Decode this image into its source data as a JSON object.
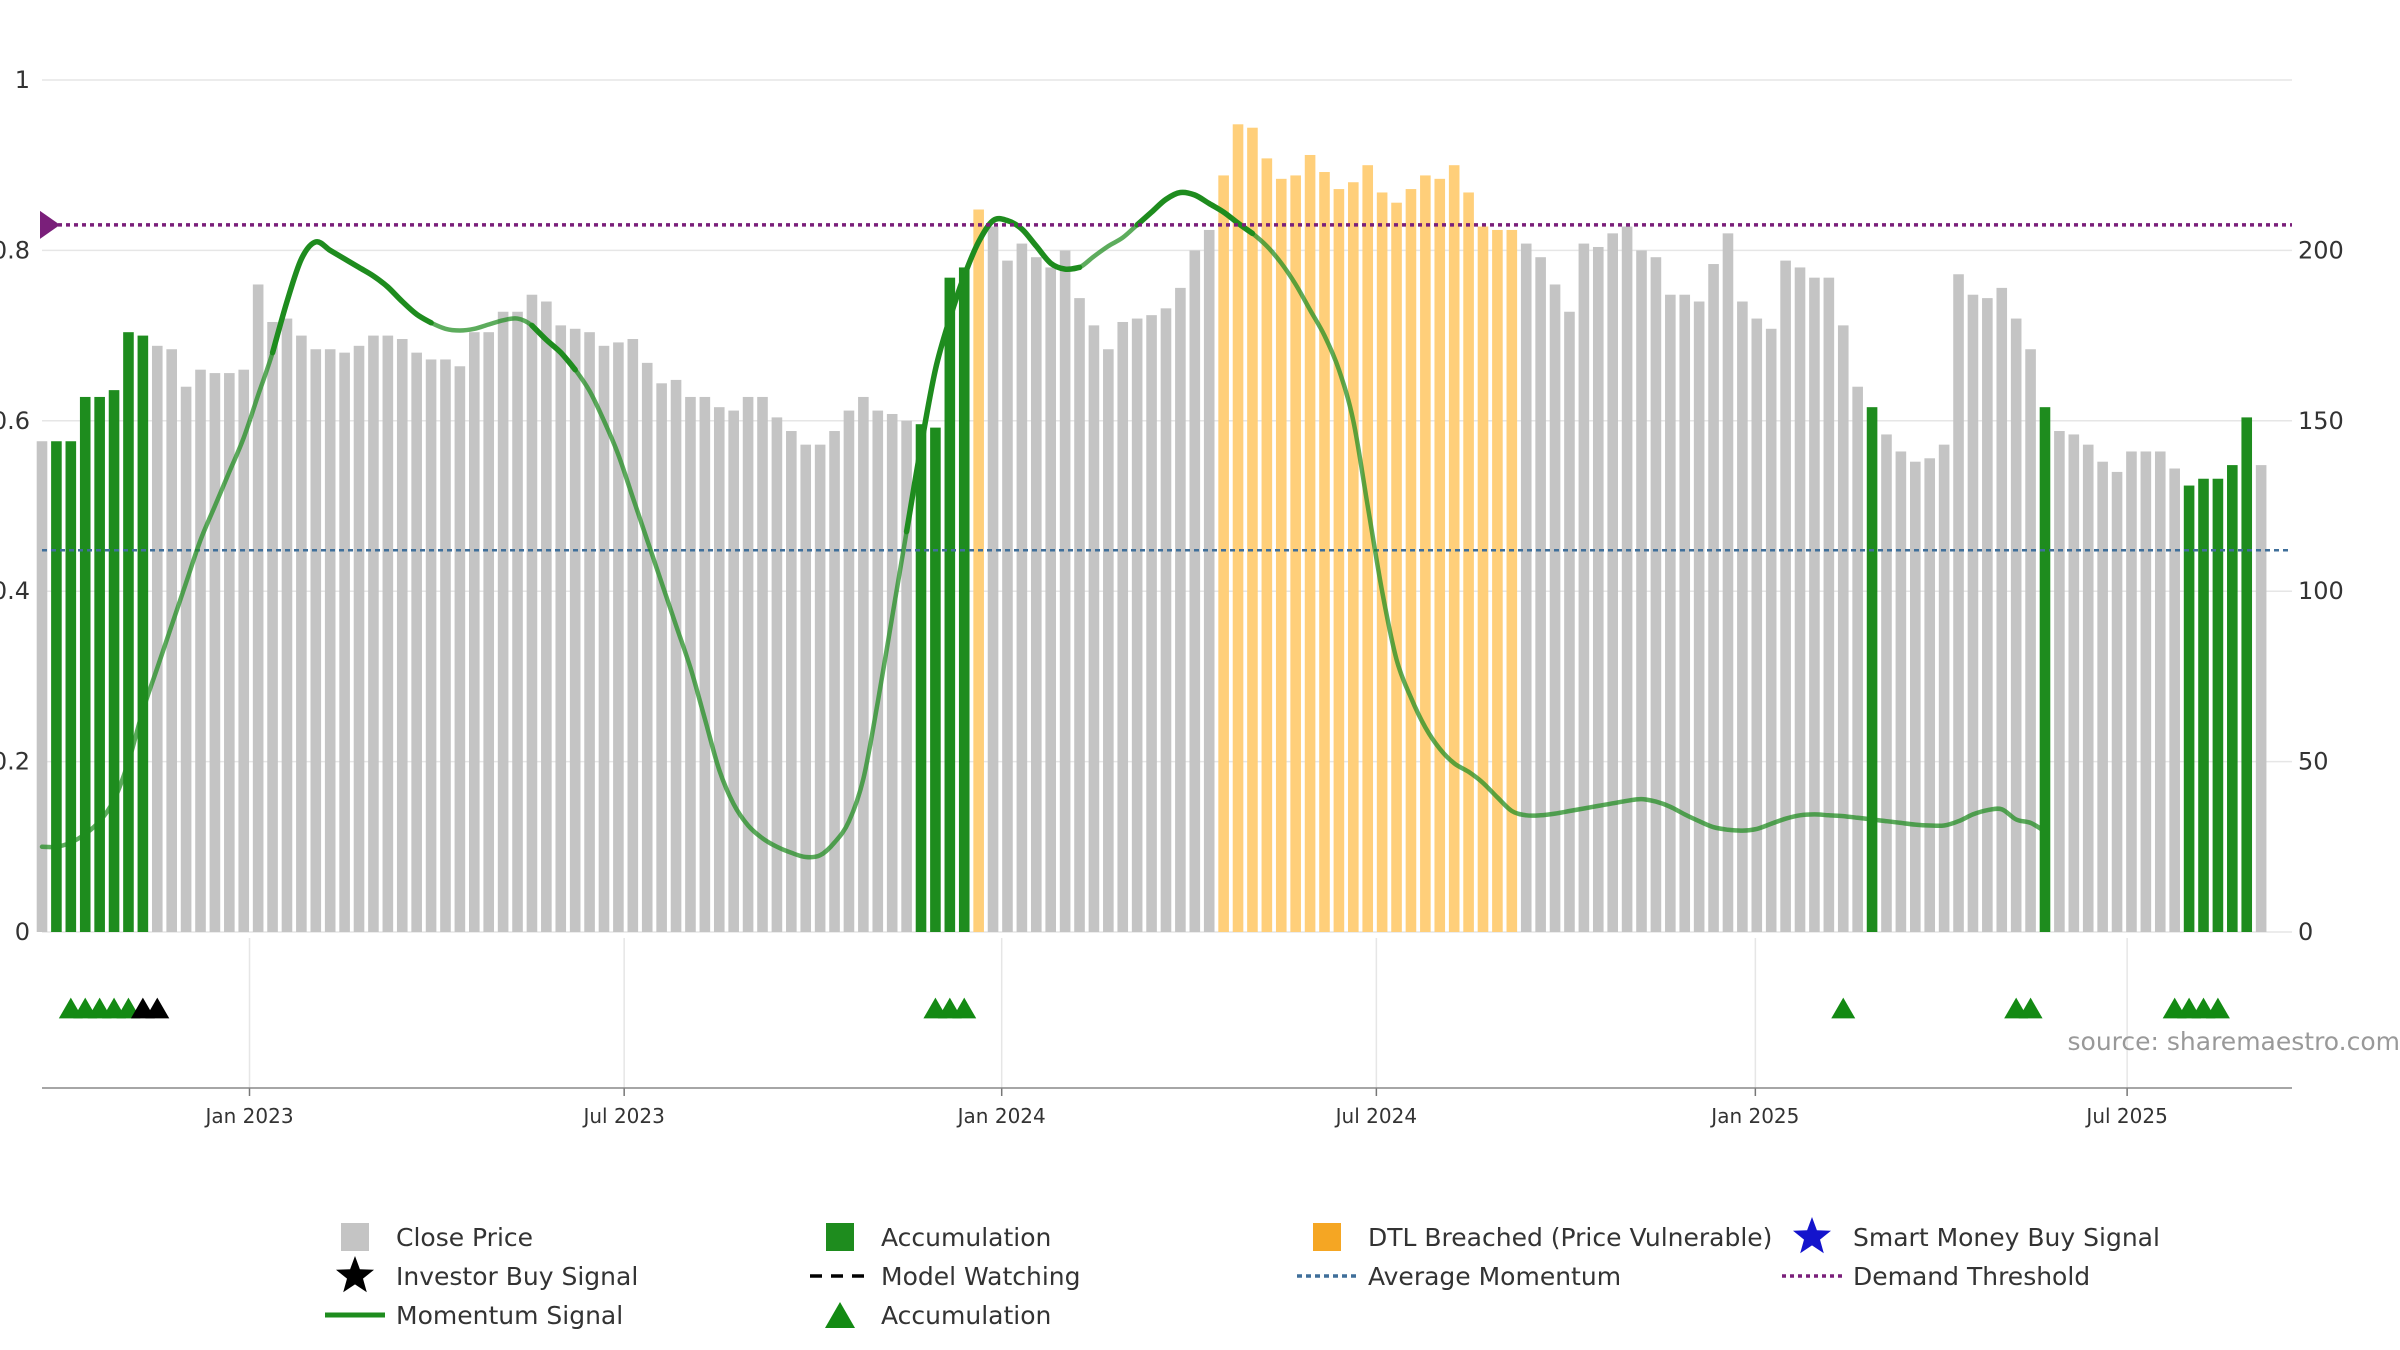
{
  "chart_data": {
    "type": "bar",
    "source": "source: sharemaestro.com",
    "left_axis": {
      "range": [
        0,
        1
      ],
      "ticks": [
        {
          "v": 0,
          "label": "0"
        },
        {
          "v": 0.2,
          "label": "0.2"
        },
        {
          "v": 0.4,
          "label": "0.4"
        },
        {
          "v": 0.6,
          "label": "0.6"
        },
        {
          "v": 0.8,
          "label": "0.8"
        },
        {
          "v": 1,
          "label": "1"
        }
      ]
    },
    "right_axis": {
      "range": [
        0,
        250
      ],
      "ticks": [
        {
          "v": 0,
          "label": "0"
        },
        {
          "v": 50,
          "label": "50"
        },
        {
          "v": 100,
          "label": "100"
        },
        {
          "v": 150,
          "label": "150"
        },
        {
          "v": 200,
          "label": "200"
        }
      ]
    },
    "x_ticks": [
      {
        "week": 14.4,
        "label": "Jan 2023"
      },
      {
        "week": 40.4,
        "label": "Jul 2023"
      },
      {
        "week": 66.6,
        "label": "Jan 2024"
      },
      {
        "week": 92.6,
        "label": "Jul 2024"
      },
      {
        "week": 118.9,
        "label": "Jan 2025"
      },
      {
        "week": 144.7,
        "label": "Jul 2025"
      }
    ],
    "demand_threshold": 0.83,
    "average_momentum": 0.448,
    "colors": {
      "close": "#c4c4c4",
      "accumulation": "#1e8c1e",
      "dtl": "#ffcf7a",
      "momentum": "#1e8c1e",
      "threshold": "#7a1f7a",
      "average": "#3f6f9a",
      "triangle": "#138a13",
      "investor_star": "#000000",
      "smart_money_star": "#1414cc",
      "grid": "#e6e6e6"
    },
    "series": [
      {
        "name": "Close Price",
        "values": [
          144,
          144,
          144,
          157,
          157,
          159,
          176,
          175,
          172,
          171,
          160,
          165,
          164,
          164,
          165,
          190,
          179,
          180,
          175,
          171,
          171,
          170,
          172,
          175,
          175,
          174,
          170,
          168,
          168,
          166,
          176,
          176,
          182,
          182,
          187,
          185,
          178,
          177,
          176,
          172,
          173,
          174,
          167,
          161,
          162,
          157,
          157,
          154,
          153,
          157,
          157,
          151,
          147,
          143,
          143,
          147,
          153,
          157,
          153,
          152,
          150,
          149,
          148,
          192,
          195,
          212,
          207,
          197,
          202,
          198,
          195,
          200,
          186,
          178,
          171,
          179,
          180,
          181,
          183,
          189,
          200,
          206,
          222,
          237,
          236,
          227,
          221,
          222,
          228,
          223,
          218,
          220,
          225,
          217,
          214,
          218,
          222,
          221,
          225,
          217,
          207,
          206,
          206,
          202,
          198,
          190,
          182,
          202,
          201,
          205,
          207,
          200,
          198,
          187,
          187,
          185,
          196,
          205,
          185,
          180,
          177,
          197,
          195,
          192,
          192,
          178,
          160,
          154,
          146,
          141,
          138,
          139,
          143,
          193,
          187,
          186,
          189,
          180,
          171,
          154,
          147,
          146,
          143,
          138,
          135,
          141,
          141,
          141,
          136,
          131,
          133,
          133,
          137,
          151,
          137
        ]
      },
      {
        "name": "Momentum Signal",
        "points": [
          [
            0,
            0.1
          ],
          [
            1,
            0.1
          ],
          [
            2,
            0.105
          ],
          [
            3,
            0.115
          ],
          [
            4,
            0.13
          ],
          [
            5,
            0.155
          ],
          [
            6,
            0.2
          ],
          [
            7,
            0.26
          ],
          [
            8,
            0.31
          ],
          [
            9,
            0.36
          ],
          [
            10,
            0.41
          ],
          [
            11,
            0.46
          ],
          [
            12,
            0.5
          ],
          [
            13,
            0.54
          ],
          [
            14,
            0.58
          ],
          [
            15,
            0.63
          ],
          [
            16,
            0.68
          ],
          [
            17,
            0.74
          ],
          [
            18,
            0.79
          ],
          [
            19,
            0.81
          ],
          [
            20,
            0.8
          ],
          [
            21,
            0.79
          ],
          [
            22,
            0.78
          ],
          [
            23,
            0.77
          ],
          [
            24,
            0.757
          ],
          [
            25,
            0.74
          ],
          [
            26,
            0.725
          ],
          [
            27,
            0.715
          ],
          [
            28,
            0.708
          ],
          [
            29,
            0.706
          ],
          [
            30,
            0.708
          ],
          [
            31,
            0.713
          ],
          [
            32,
            0.718
          ],
          [
            33,
            0.72
          ],
          [
            34,
            0.712
          ],
          [
            35,
            0.695
          ],
          [
            36,
            0.68
          ],
          [
            37,
            0.66
          ],
          [
            38,
            0.635
          ],
          [
            39,
            0.6
          ],
          [
            40,
            0.56
          ],
          [
            41,
            0.51
          ],
          [
            42,
            0.46
          ],
          [
            43,
            0.41
          ],
          [
            44,
            0.36
          ],
          [
            45,
            0.31
          ],
          [
            46,
            0.25
          ],
          [
            47,
            0.19
          ],
          [
            48,
            0.15
          ],
          [
            49,
            0.125
          ],
          [
            50,
            0.11
          ],
          [
            51,
            0.1
          ],
          [
            52,
            0.093
          ],
          [
            53,
            0.088
          ],
          [
            54,
            0.09
          ],
          [
            55,
            0.105
          ],
          [
            56,
            0.13
          ],
          [
            57,
            0.18
          ],
          [
            58,
            0.27
          ],
          [
            59,
            0.37
          ],
          [
            60,
            0.47
          ],
          [
            61,
            0.57
          ],
          [
            62,
            0.66
          ],
          [
            63,
            0.72
          ],
          [
            64,
            0.77
          ],
          [
            65,
            0.81
          ],
          [
            66,
            0.835
          ],
          [
            67,
            0.835
          ],
          [
            68,
            0.825
          ],
          [
            69,
            0.805
          ],
          [
            70,
            0.785
          ],
          [
            71,
            0.778
          ],
          [
            72,
            0.78
          ],
          [
            73,
            0.793
          ],
          [
            74,
            0.805
          ],
          [
            75,
            0.815
          ],
          [
            76,
            0.83
          ],
          [
            77,
            0.845
          ],
          [
            78,
            0.86
          ],
          [
            79,
            0.868
          ],
          [
            80,
            0.865
          ],
          [
            81,
            0.855
          ],
          [
            82,
            0.845
          ],
          [
            83,
            0.832
          ],
          [
            84,
            0.82
          ],
          [
            85,
            0.805
          ],
          [
            86,
            0.785
          ],
          [
            87,
            0.76
          ],
          [
            88,
            0.73
          ],
          [
            89,
            0.7
          ],
          [
            90,
            0.66
          ],
          [
            91,
            0.6
          ],
          [
            92,
            0.5
          ],
          [
            93,
            0.4
          ],
          [
            94,
            0.32
          ],
          [
            95,
            0.275
          ],
          [
            96,
            0.24
          ],
          [
            97,
            0.215
          ],
          [
            98,
            0.198
          ],
          [
            99,
            0.188
          ],
          [
            100,
            0.175
          ],
          [
            101,
            0.158
          ],
          [
            102,
            0.142
          ],
          [
            103,
            0.137
          ],
          [
            104,
            0.137
          ],
          [
            105,
            0.139
          ],
          [
            106,
            0.142
          ],
          [
            107,
            0.145
          ],
          [
            108,
            0.148
          ],
          [
            109,
            0.151
          ],
          [
            110,
            0.154
          ],
          [
            111,
            0.156
          ],
          [
            112,
            0.153
          ],
          [
            113,
            0.147
          ],
          [
            114,
            0.138
          ],
          [
            115,
            0.13
          ],
          [
            116,
            0.123
          ],
          [
            117,
            0.12
          ],
          [
            118,
            0.119
          ],
          [
            119,
            0.121
          ],
          [
            120,
            0.127
          ],
          [
            121,
            0.133
          ],
          [
            122,
            0.137
          ],
          [
            123,
            0.138
          ],
          [
            124,
            0.137
          ],
          [
            125,
            0.136
          ],
          [
            126,
            0.134
          ],
          [
            127,
            0.132
          ],
          [
            128,
            0.13
          ],
          [
            129,
            0.128
          ],
          [
            130,
            0.126
          ],
          [
            131,
            0.125
          ],
          [
            132,
            0.125
          ],
          [
            133,
            0.13
          ],
          [
            134,
            0.138
          ],
          [
            135,
            0.143
          ],
          [
            136,
            0.144
          ],
          [
            137,
            0.132
          ],
          [
            138,
            0.128
          ],
          [
            139,
            0.118
          ]
        ]
      }
    ],
    "accumulation_bars": [
      1,
      2,
      3,
      4,
      5,
      6,
      7,
      61,
      62,
      63,
      64,
      127,
      139,
      149,
      150,
      151,
      152,
      153
    ],
    "dtl_bars": [
      65,
      82,
      83,
      84,
      85,
      86,
      87,
      88,
      89,
      90,
      91,
      92,
      93,
      94,
      95,
      96,
      97,
      98,
      99,
      100,
      101,
      102
    ],
    "momentum_bold_ranges": [
      [
        16,
        27
      ],
      [
        34,
        37
      ],
      [
        60,
        72
      ],
      [
        76,
        84
      ]
    ],
    "accumulation_triangles": [
      2,
      3,
      4,
      5,
      6,
      62,
      63,
      64,
      125,
      137,
      138,
      148,
      149,
      150,
      151
    ],
    "investor_buy_signals": [
      7,
      8
    ],
    "legend": [
      {
        "key": "close",
        "label": "Close Price"
      },
      {
        "key": "accumulation_square",
        "label": "Accumulation"
      },
      {
        "key": "dtl",
        "label": "DTL Breached (Price Vulnerable)"
      },
      {
        "key": "smart_money",
        "label": "Smart Money Buy Signal"
      },
      {
        "key": "investor",
        "label": "Investor Buy Signal"
      },
      {
        "key": "model_watching",
        "label": "Model Watching"
      },
      {
        "key": "average",
        "label": "Average Momentum"
      },
      {
        "key": "threshold",
        "label": "Demand Threshold"
      },
      {
        "key": "momentum",
        "label": "Momentum Signal"
      },
      {
        "key": "accumulation_triangle",
        "label": "Accumulation"
      }
    ]
  }
}
